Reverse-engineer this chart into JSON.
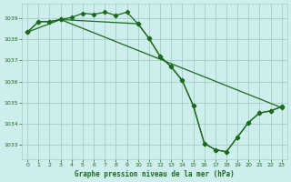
{
  "title": "Graphe pression niveau de la mer (hPa)",
  "background_color": "#ceeeed",
  "grid_color": "#aaccc8",
  "line_color": "#1a6b1a",
  "marker_color": "#1a6b1a",
  "xlim": [
    -0.5,
    23.5
  ],
  "ylim": [
    1032.3,
    1039.7
  ],
  "yticks": [
    1033,
    1034,
    1035,
    1036,
    1037,
    1038,
    1039
  ],
  "xticks": [
    0,
    1,
    2,
    3,
    4,
    5,
    6,
    7,
    8,
    9,
    10,
    11,
    12,
    13,
    14,
    15,
    16,
    17,
    18,
    19,
    20,
    21,
    22,
    23
  ],
  "line1_x": [
    0,
    1,
    2,
    3,
    4,
    5,
    6,
    7,
    8,
    9,
    10,
    11,
    12,
    13,
    14,
    15,
    16,
    17,
    18,
    19,
    20,
    21,
    22,
    23
  ],
  "line1_y": [
    1038.35,
    1038.85,
    1038.85,
    1038.95,
    1039.05,
    1039.25,
    1039.2,
    1039.3,
    1039.15,
    1039.3,
    1038.75,
    1038.05,
    1037.2,
    1036.7,
    1036.05,
    1034.85,
    1033.05,
    1032.75,
    1032.65,
    1033.35,
    1034.05,
    1034.5,
    1034.6,
    1034.8
  ],
  "line2_x": [
    0,
    1,
    2,
    3,
    10,
    11,
    12,
    13,
    14,
    15,
    16,
    17,
    18,
    19,
    20,
    21,
    22,
    23
  ],
  "line2_y": [
    1038.35,
    1038.85,
    1038.85,
    1038.95,
    1038.75,
    1038.05,
    1037.2,
    1036.7,
    1036.05,
    1034.85,
    1033.05,
    1032.75,
    1032.65,
    1033.35,
    1034.05,
    1034.5,
    1034.6,
    1034.8
  ],
  "line3_x": [
    0,
    3,
    23
  ],
  "line3_y": [
    1038.35,
    1038.95,
    1034.75
  ]
}
